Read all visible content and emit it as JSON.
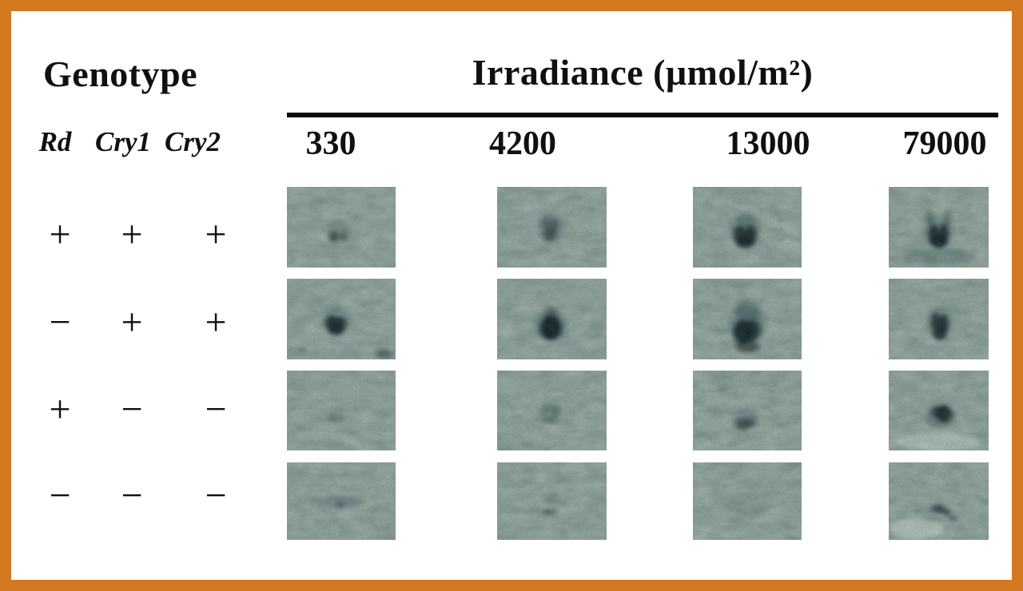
{
  "figure": {
    "title_left": "Genotype",
    "title_right": "Irradiance (μmol/m²)",
    "genotype_genes": [
      "Rd",
      "Cry1",
      "Cry2"
    ],
    "irradiance_levels": [
      "330",
      "4200",
      "13000",
      "79000"
    ],
    "rows": [
      {
        "genotype": [
          "+",
          "+",
          "+"
        ]
      },
      {
        "genotype": [
          "−",
          "+",
          "+"
        ]
      },
      {
        "genotype": [
          "+",
          "−",
          "−"
        ]
      },
      {
        "genotype": [
          "−",
          "−",
          "−"
        ]
      }
    ],
    "colors": {
      "border": "#d2791f",
      "background": "#ffffff",
      "text": "#101010",
      "rule": "#0d0d0d",
      "panel_bg": "#93a49c",
      "panel_signal": "#0e1d22",
      "panel_light": "#dfe8e0"
    },
    "panels": [
      [
        {
          "dark": [
            [
              43,
              62,
              4.5,
              7,
              0.6
            ],
            [
              52,
              62,
              3.5,
              6,
              0.45
            ],
            [
              48,
              52,
              11,
              12,
              0.12
            ]
          ]
        },
        {
          "dark": [
            [
              45,
              47,
              3.5,
              9,
              0.4
            ],
            [
              52,
              49,
              3.5,
              10,
              0.5
            ],
            [
              48,
              60,
              6,
              8,
              0.5
            ],
            [
              49,
              50,
              13,
              17,
              0.14
            ]
          ]
        },
        {
          "dark": [
            [
              43,
              60,
              5.5,
              12,
              0.8
            ],
            [
              53,
              60,
              5.5,
              12,
              0.85
            ],
            [
              48,
              69,
              8,
              7,
              0.85
            ],
            [
              48,
              40,
              9,
              10,
              0.2
            ],
            [
              48,
              52,
              14,
              17,
              0.18
            ]
          ]
        },
        {
          "dark": [
            [
              45,
              58,
              5,
              12,
              0.85
            ],
            [
              55,
              58,
              5,
              12,
              0.85
            ],
            [
              50,
              68,
              9,
              8,
              0.85
            ],
            [
              41,
              38,
              4,
              9,
              0.3
            ],
            [
              59,
              38,
              4,
              9,
              0.3
            ],
            [
              50,
              55,
              15,
              19,
              0.2
            ],
            [
              50,
              87,
              36,
              10,
              0.2
            ]
          ]
        }
      ],
      [
        {
          "dark": [
            [
              41,
              55,
              5.5,
              10,
              0.85
            ],
            [
              49,
              57,
              5.5,
              10,
              0.8
            ],
            [
              45,
              64,
              7,
              6,
              0.8
            ],
            [
              45,
              49,
              13,
              15,
              0.18
            ],
            [
              14,
              87,
              2.5,
              3,
              0.5
            ],
            [
              89,
              93,
              8,
              6,
              0.4
            ]
          ]
        },
        {
          "dark": [
            [
              49,
              61,
              10,
              15,
              0.95
            ],
            [
              49,
              46,
              6,
              11,
              0.4
            ],
            [
              49,
              57,
              15,
              21,
              0.2
            ]
          ]
        },
        {
          "dark": [
            [
              46,
              66,
              9,
              15,
              0.9
            ],
            [
              55,
              64,
              7,
              13,
              0.8
            ],
            [
              50,
              39,
              12,
              14,
              0.25
            ],
            [
              50,
              84,
              11,
              8,
              0.6
            ],
            [
              50,
              56,
              17,
              23,
              0.2
            ]
          ]
        },
        {
          "dark": [
            [
              47,
              53,
              4.5,
              11,
              0.75
            ],
            [
              55,
              56,
              4.5,
              12,
              0.85
            ],
            [
              51,
              68,
              7,
              8,
              0.8
            ],
            [
              51,
              53,
              13,
              18,
              0.2
            ]
          ]
        }
      ],
      [
        {
          "dark": [
            [
              42,
              59,
              3,
              4,
              0.3
            ],
            [
              49,
              60,
              2.5,
              3.5,
              0.25
            ],
            [
              46,
              55,
              9,
              9,
              0.08
            ]
          ]
        },
        {
          "dark": [
            [
              45,
              49,
              3.5,
              7,
              0.25
            ],
            [
              53,
              51,
              3.5,
              7,
              0.3
            ],
            [
              49,
              62,
              4.5,
              4.5,
              0.3
            ],
            [
              49,
              53,
              10,
              12,
              0.1
            ]
          ]
        },
        {
          "dark": [
            [
              46,
              67,
              7,
              8,
              0.55
            ],
            [
              54,
              65,
              4.5,
              6,
              0.4
            ],
            [
              28,
              22,
              4,
              5,
              0.22
            ],
            [
              48,
              60,
              12,
              12,
              0.14
            ]
          ]
        },
        {
          "dark": [
            [
              55,
              54,
              8,
              11,
              0.85
            ],
            [
              47,
              51,
              5,
              8,
              0.5
            ],
            [
              52,
              58,
              15,
              14,
              0.28
            ]
          ],
          "light": [
            [
              50,
              89,
              42,
              12,
              0.35
            ]
          ]
        }
      ],
      [
        {
          "dark": [
            [
              46,
              51,
              26,
              7,
              0.15
            ],
            [
              49,
              55,
              3.5,
              4.5,
              0.35
            ],
            [
              30,
              77,
              1.5,
              2,
              0.4
            ]
          ]
        },
        {
          "dark": [
            [
              46,
              64,
              3.5,
              4.5,
              0.4
            ],
            [
              52,
              65,
              3,
              4,
              0.35
            ],
            [
              49,
              46,
              7,
              9,
              0.12
            ]
          ]
        },
        {
          "dark": [
            [
              50,
              55,
              20,
              15,
              0.07
            ]
          ]
        },
        {
          "dark": [
            [
              51,
              60,
              4.5,
              6,
              0.7
            ],
            [
              58,
              64,
              3.5,
              5,
              0.65
            ],
            [
              45,
              59,
              3.5,
              4.5,
              0.45
            ],
            [
              64,
              72,
              5,
              3.5,
              0.45
            ],
            [
              44,
              74,
              12,
              4,
              0.22
            ]
          ],
          "light": [
            [
              28,
              86,
              28,
              13,
              0.4
            ]
          ]
        }
      ]
    ]
  }
}
